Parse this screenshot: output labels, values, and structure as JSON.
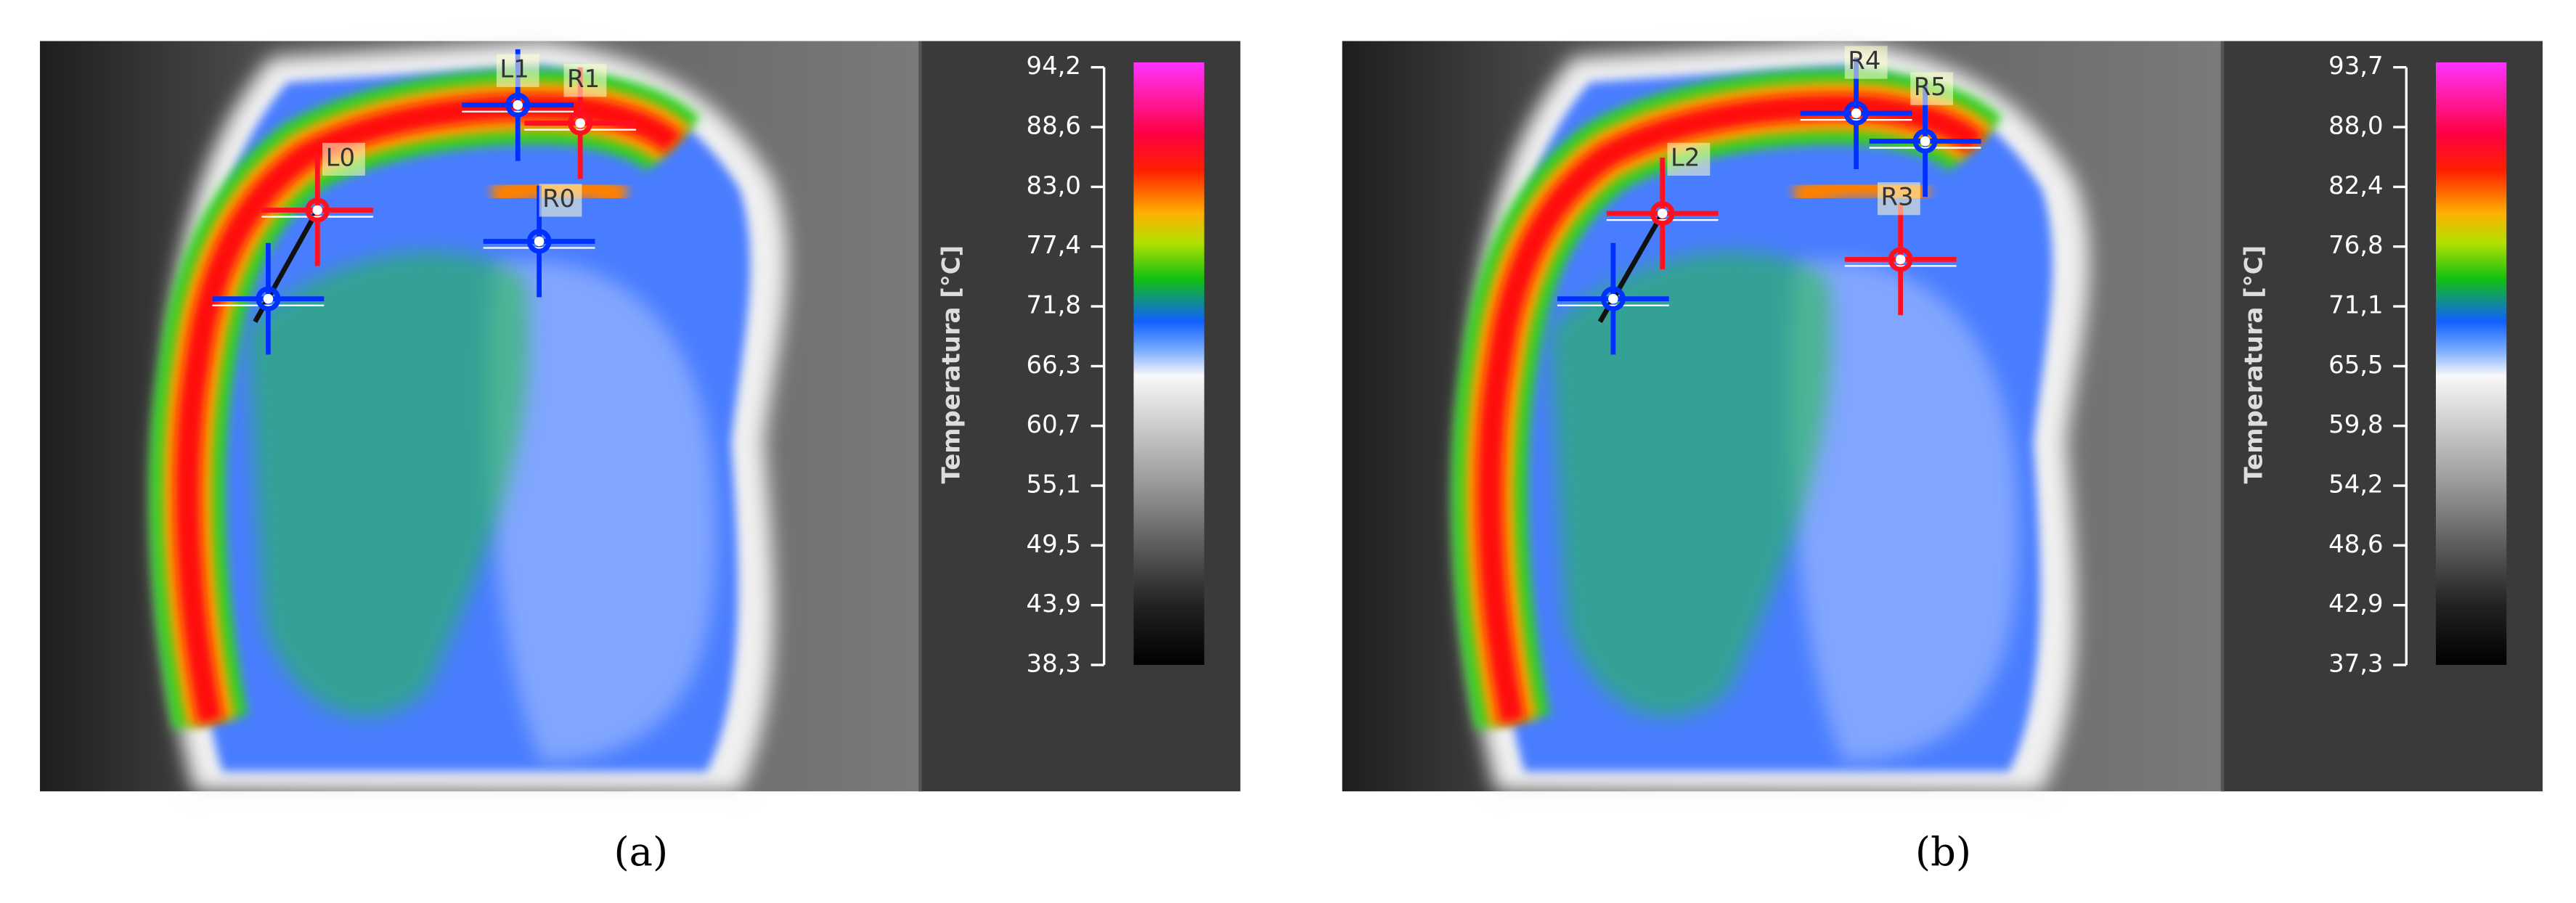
{
  "panels": [
    {
      "caption": "(a)",
      "axis_label": "Temperatura  [°C]",
      "ticks": [
        "94,2",
        "88,6",
        "83,0",
        "77,4",
        "71,8",
        "66,3",
        "60,7",
        "55,1",
        "49,5",
        "43,9",
        "38,3"
      ],
      "markers": [
        "L0",
        "L1",
        "R1",
        "R0"
      ]
    },
    {
      "caption": "(b)",
      "axis_label": "Temperatura  [°C]",
      "ticks": [
        "93,7",
        "88,0",
        "82,4",
        "76,8",
        "71,1",
        "65,5",
        "59,8",
        "54,2",
        "48,6",
        "42,9",
        "37,3"
      ],
      "markers": [
        "L2",
        "R4",
        "R5",
        "R3"
      ]
    }
  ]
}
